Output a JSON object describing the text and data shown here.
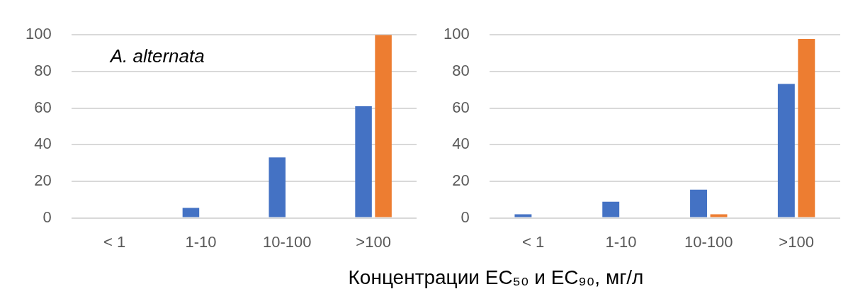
{
  "chart_data": [
    {
      "type": "bar",
      "categories": [
        "< 1",
        "1-10",
        "10-100",
        ">100"
      ],
      "series": [
        {
          "color": "#4472c4",
          "values": [
            0,
            5.5,
            33,
            61
          ]
        },
        {
          "color": "#ed7d31",
          "values": [
            0,
            0,
            0,
            100
          ]
        }
      ],
      "ylim": [
        0,
        100
      ],
      "yticks": [
        0,
        20,
        40,
        60,
        80,
        100
      ],
      "grid": "y",
      "legend": false,
      "annotations": [
        "A. alternata"
      ]
    },
    {
      "type": "bar",
      "categories": [
        "< 1",
        "1-10",
        "10-100",
        ">100"
      ],
      "series": [
        {
          "color": "#4472c4",
          "values": [
            2,
            8.8,
            15.4,
            73.2
          ]
        },
        {
          "color": "#ed7d31",
          "values": [
            0,
            0,
            2,
            97.8
          ]
        }
      ],
      "ylim": [
        0,
        100
      ],
      "yticks": [
        0,
        20,
        40,
        60,
        80,
        100
      ],
      "grid": "y",
      "legend": false,
      "xlabel": "Концентрации EC₅₀ и EC₉₀, мг/л"
    }
  ]
}
